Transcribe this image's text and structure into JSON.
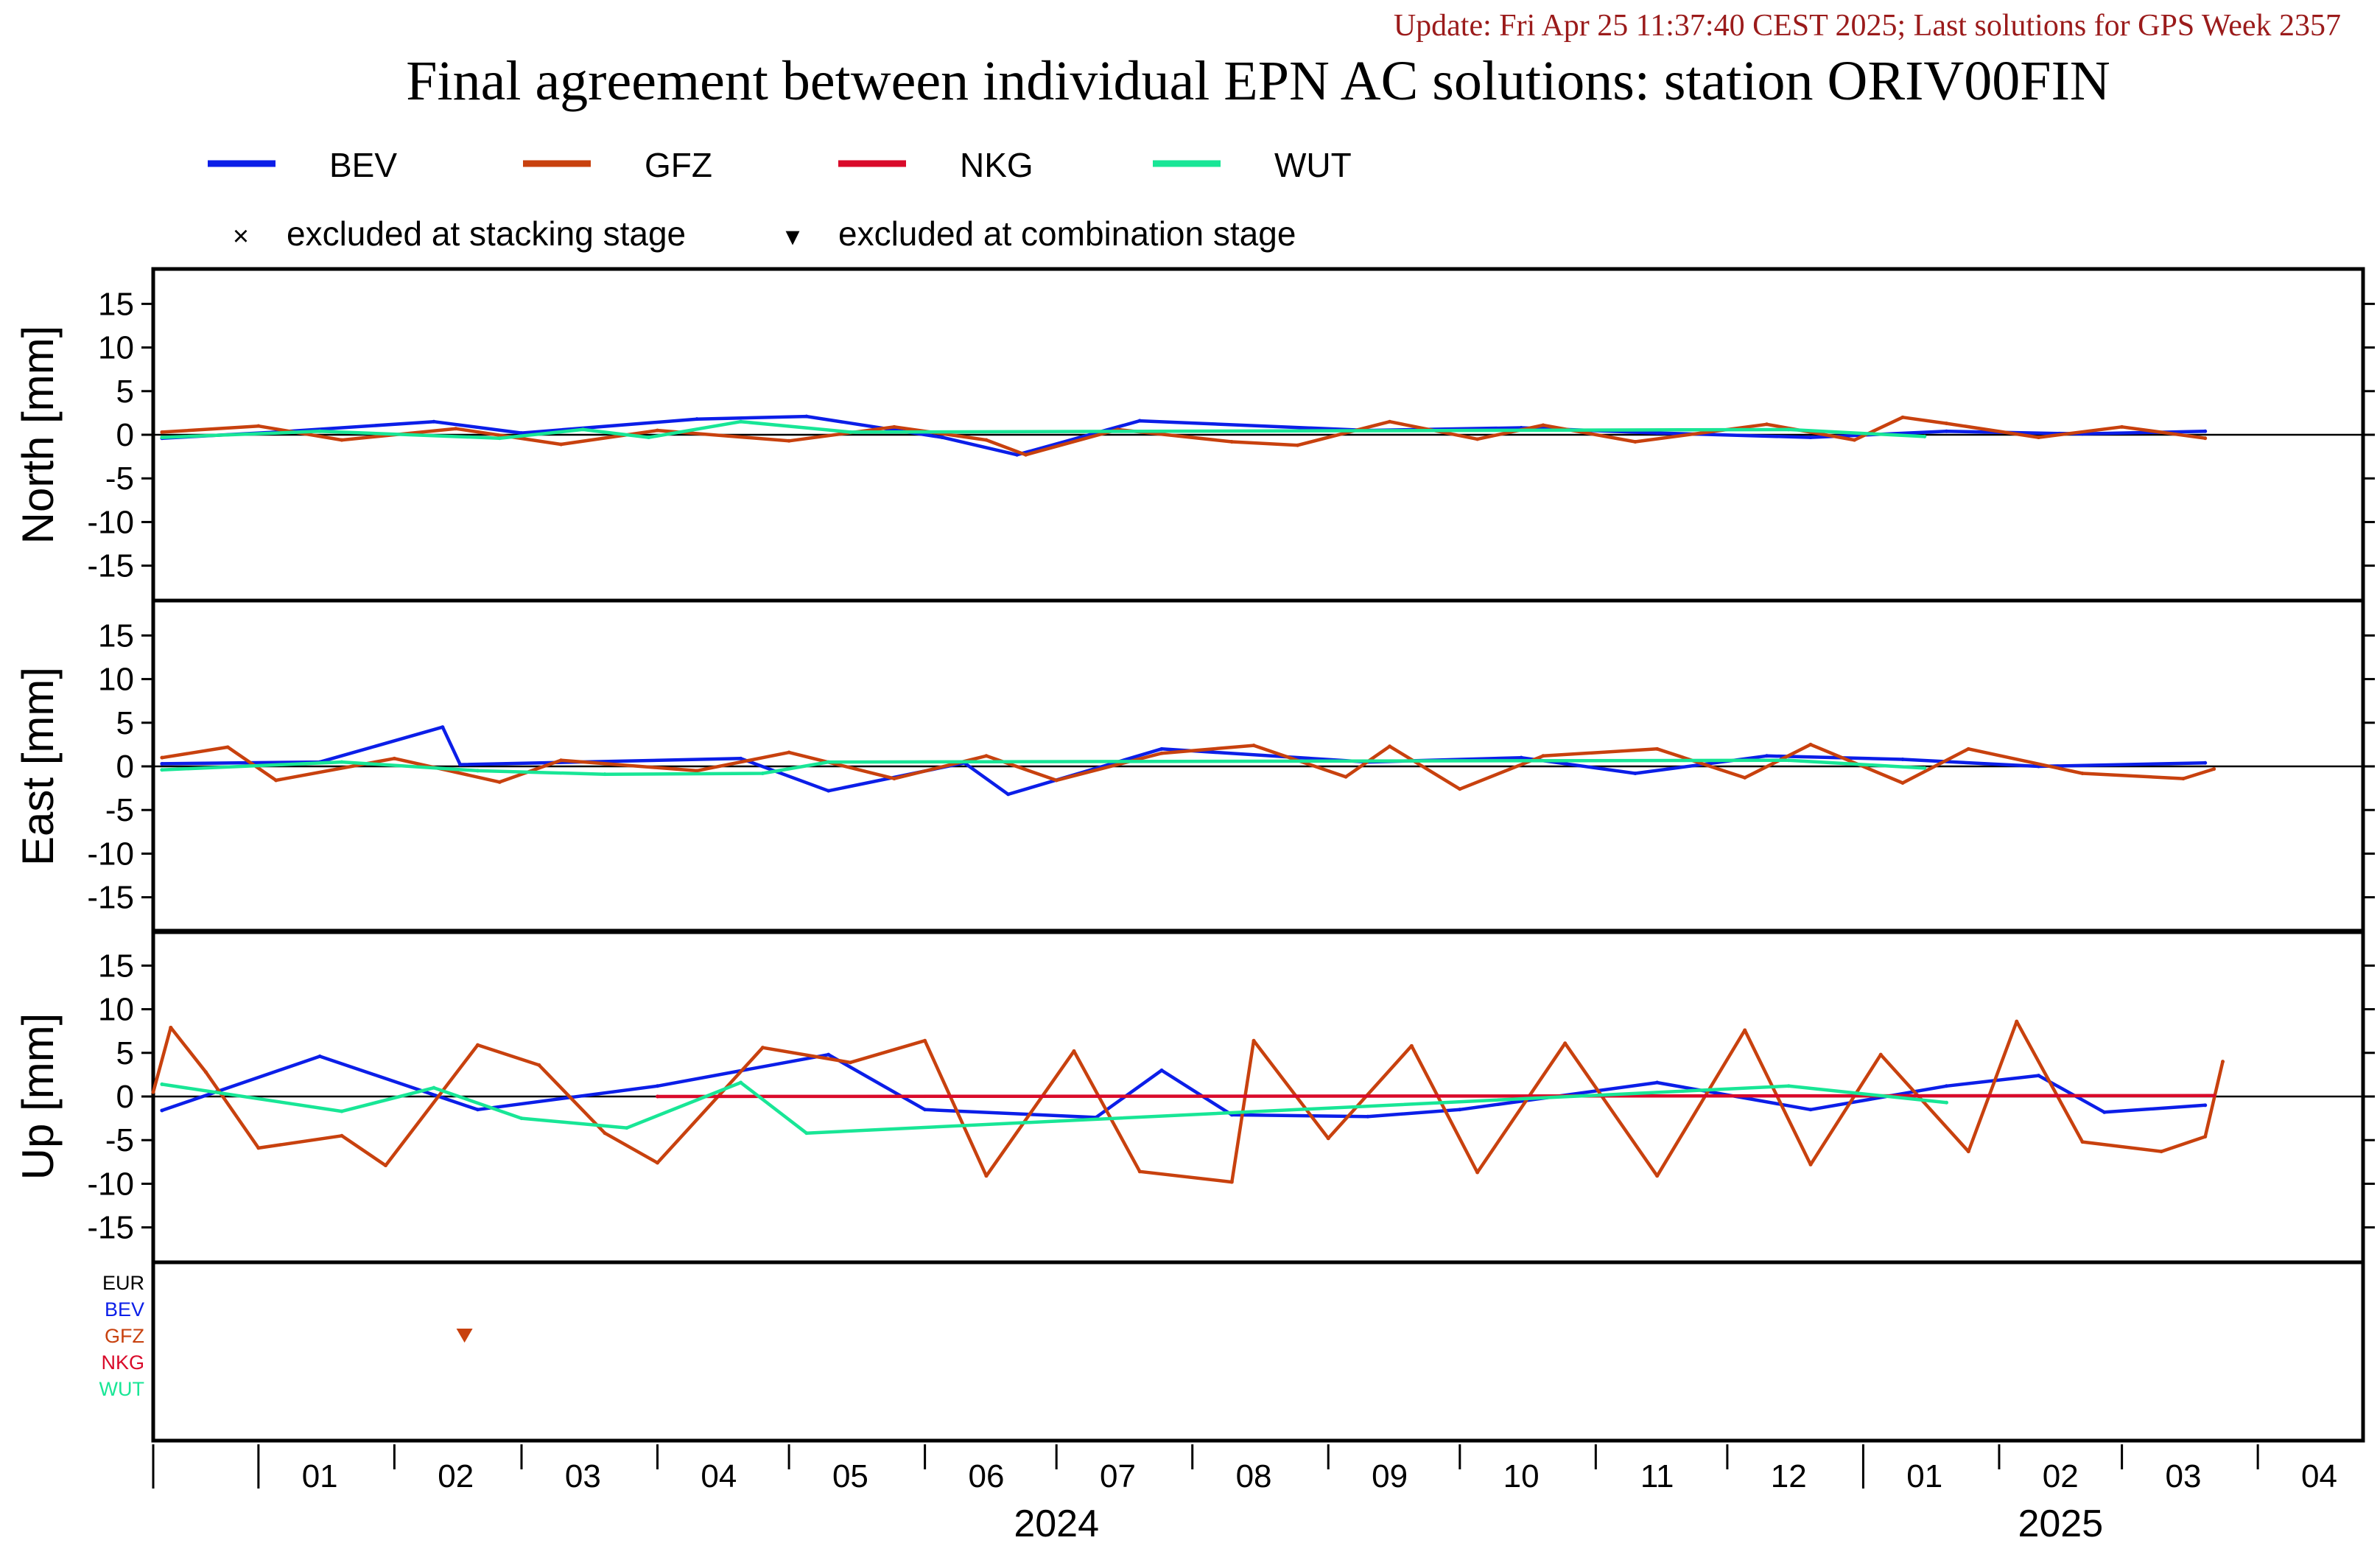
{
  "update_line": "Update: Fri Apr 25 11:37:40 CEST 2025; Last solutions for GPS Week 2357",
  "title": "Final agreement between individual EPN AC solutions: station ORIV00FIN",
  "colors": {
    "BEV": "#0b1ee8",
    "GFZ": "#c8410e",
    "NKG": "#d90a2a",
    "WUT": "#18e696",
    "EUR": "#000000",
    "update_text": "#9b1b1b"
  },
  "legend": {
    "series": [
      {
        "name": "BEV",
        "color": "#0b1ee8"
      },
      {
        "name": "GFZ",
        "color": "#c8410e"
      },
      {
        "name": "NKG",
        "color": "#d90a2a"
      },
      {
        "name": "WUT",
        "color": "#18e696"
      }
    ],
    "markers": [
      {
        "symbol": "×",
        "label": "excluded at stacking stage"
      },
      {
        "symbol": "▾",
        "label": "excluded at combination stage"
      }
    ]
  },
  "chart_data": {
    "type": "line",
    "x_axis": {
      "start": "2023-12-08",
      "end": "2025-04-25",
      "month_ticks": [
        {
          "label": "01",
          "date": "2024-01-15"
        },
        {
          "label": "02",
          "date": "2024-02-15"
        },
        {
          "label": "03",
          "date": "2024-03-15"
        },
        {
          "label": "04",
          "date": "2024-04-15"
        },
        {
          "label": "05",
          "date": "2024-05-15"
        },
        {
          "label": "06",
          "date": "2024-06-15"
        },
        {
          "label": "07",
          "date": "2024-07-15"
        },
        {
          "label": "08",
          "date": "2024-08-15"
        },
        {
          "label": "09",
          "date": "2024-09-15"
        },
        {
          "label": "10",
          "date": "2024-10-15"
        },
        {
          "label": "11",
          "date": "2024-11-15"
        },
        {
          "label": "12",
          "date": "2024-12-15"
        },
        {
          "label": "01",
          "date": "2025-01-15"
        },
        {
          "label": "02",
          "date": "2025-02-15"
        },
        {
          "label": "03",
          "date": "2025-03-15"
        },
        {
          "label": "04",
          "date": "2025-04-15"
        }
      ],
      "years": [
        {
          "label": "2024",
          "date": "2024-07-01"
        },
        {
          "label": "2025",
          "date": "2025-02-15"
        }
      ]
    },
    "panels": [
      {
        "ylabel": "North [mm]",
        "ylim": [
          -19,
          19
        ],
        "yticks": [
          15,
          10,
          5,
          0,
          -5,
          -10,
          -15
        ],
        "series": [
          {
            "name": "BEV",
            "color": "#0b1ee8",
            "points": [
              [
                "2023-12-10",
                -0.4
              ],
              [
                "2024-01-05",
                0.3
              ],
              [
                "2024-02-10",
                1.5
              ],
              [
                "2024-03-01",
                0.2
              ],
              [
                "2024-04-10",
                1.8
              ],
              [
                "2024-05-05",
                2.1
              ],
              [
                "2024-06-05",
                -0.3
              ],
              [
                "2024-06-22",
                -2.3
              ],
              [
                "2024-07-20",
                1.6
              ],
              [
                "2024-09-10",
                0.5
              ],
              [
                "2024-10-15",
                0.8
              ],
              [
                "2024-11-15",
                0.2
              ],
              [
                "2024-12-20",
                -0.3
              ],
              [
                "2025-01-20",
                0.4
              ],
              [
                "2025-02-20",
                0.1
              ],
              [
                "2025-03-20",
                0.4
              ]
            ]
          },
          {
            "name": "GFZ",
            "color": "#c8410e",
            "points": [
              [
                "2023-12-10",
                0.3
              ],
              [
                "2024-01-01",
                1.0
              ],
              [
                "2024-01-20",
                -0.6
              ],
              [
                "2024-02-15",
                0.7
              ],
              [
                "2024-03-10",
                -1.1
              ],
              [
                "2024-04-01",
                0.5
              ],
              [
                "2024-05-01",
                -0.7
              ],
              [
                "2024-05-25",
                0.9
              ],
              [
                "2024-06-15",
                -0.6
              ],
              [
                "2024-06-24",
                -2.3
              ],
              [
                "2024-07-15",
                0.6
              ],
              [
                "2024-08-10",
                -0.8
              ],
              [
                "2024-08-25",
                -1.2
              ],
              [
                "2024-09-15",
                1.5
              ],
              [
                "2024-10-05",
                -0.5
              ],
              [
                "2024-10-20",
                1.1
              ],
              [
                "2024-11-10",
                -0.8
              ],
              [
                "2024-12-10",
                1.2
              ],
              [
                "2024-12-30",
                -0.6
              ],
              [
                "2025-01-10",
                2.0
              ],
              [
                "2025-01-20",
                1.3
              ],
              [
                "2025-02-10",
                -0.3
              ],
              [
                "2025-03-01",
                0.9
              ],
              [
                "2025-03-20",
                -0.4
              ]
            ]
          },
          {
            "name": "WUT",
            "color": "#18e696",
            "points": [
              [
                "2023-12-10",
                -0.3
              ],
              [
                "2024-01-15",
                0.4
              ],
              [
                "2024-02-25",
                -0.4
              ],
              [
                "2024-03-15",
                0.6
              ],
              [
                "2024-03-30",
                -0.3
              ],
              [
                "2024-04-20",
                1.5
              ],
              [
                "2024-05-15",
                0.3
              ],
              [
                "2024-12-15",
                0.6
              ],
              [
                "2025-01-15",
                -0.2
              ]
            ]
          }
        ]
      },
      {
        "ylabel": "East [mm]",
        "ylim": [
          -19,
          19
        ],
        "yticks": [
          15,
          10,
          5,
          0,
          -5,
          -10,
          -15
        ],
        "series": [
          {
            "name": "BEV",
            "color": "#0b1ee8",
            "points": [
              [
                "2023-12-10",
                0.3
              ],
              [
                "2024-01-15",
                0.5
              ],
              [
                "2024-02-12",
                4.5
              ],
              [
                "2024-02-16",
                0.2
              ],
              [
                "2024-04-20",
                0.9
              ],
              [
                "2024-05-10",
                -2.8
              ],
              [
                "2024-06-10",
                0.4
              ],
              [
                "2024-06-20",
                -3.2
              ],
              [
                "2024-07-25",
                2.0
              ],
              [
                "2024-09-10",
                0.5
              ],
              [
                "2024-10-15",
                1.0
              ],
              [
                "2024-11-10",
                -0.8
              ],
              [
                "2024-12-10",
                1.2
              ],
              [
                "2025-01-10",
                0.8
              ],
              [
                "2025-02-10",
                0.0
              ],
              [
                "2025-03-20",
                0.4
              ]
            ]
          },
          {
            "name": "GFZ",
            "color": "#c8410e",
            "points": [
              [
                "2023-12-10",
                1.0
              ],
              [
                "2023-12-25",
                2.2
              ],
              [
                "2024-01-05",
                -1.6
              ],
              [
                "2024-02-01",
                0.9
              ],
              [
                "2024-02-25",
                -1.8
              ],
              [
                "2024-03-10",
                0.7
              ],
              [
                "2024-04-10",
                -0.5
              ],
              [
                "2024-05-01",
                1.6
              ],
              [
                "2024-05-25",
                -1.4
              ],
              [
                "2024-06-15",
                1.2
              ],
              [
                "2024-07-01",
                -1.6
              ],
              [
                "2024-07-25",
                1.5
              ],
              [
                "2024-08-15",
                2.4
              ],
              [
                "2024-09-05",
                -1.2
              ],
              [
                "2024-09-15",
                2.3
              ],
              [
                "2024-10-01",
                -2.6
              ],
              [
                "2024-10-20",
                1.2
              ],
              [
                "2024-11-15",
                2.0
              ],
              [
                "2024-12-05",
                -1.3
              ],
              [
                "2024-12-20",
                2.5
              ],
              [
                "2025-01-10",
                -1.9
              ],
              [
                "2025-01-25",
                2.0
              ],
              [
                "2025-02-20",
                -0.8
              ],
              [
                "2025-03-15",
                -1.4
              ],
              [
                "2025-03-22",
                -0.3
              ]
            ]
          },
          {
            "name": "WUT",
            "color": "#18e696",
            "points": [
              [
                "2023-12-10",
                -0.4
              ],
              [
                "2024-01-20",
                0.5
              ],
              [
                "2024-02-20",
                -0.5
              ],
              [
                "2024-03-20",
                -0.9
              ],
              [
                "2024-04-25",
                -0.8
              ],
              [
                "2024-05-10",
                0.5
              ],
              [
                "2024-12-15",
                0.7
              ],
              [
                "2025-01-15",
                -0.2
              ]
            ]
          }
        ]
      },
      {
        "ylabel": "Up [mm]",
        "ylim": [
          -19,
          19
        ],
        "yticks": [
          15,
          10,
          5,
          0,
          -5,
          -10,
          -15
        ],
        "series": [
          {
            "name": "BEV",
            "color": "#0b1ee8",
            "points": [
              [
                "2023-12-10",
                -1.6
              ],
              [
                "2024-01-15",
                4.6
              ],
              [
                "2024-02-20",
                -1.5
              ],
              [
                "2024-04-01",
                1.2
              ],
              [
                "2024-05-10",
                4.8
              ],
              [
                "2024-06-01",
                -1.5
              ],
              [
                "2024-07-10",
                -2.4
              ],
              [
                "2024-07-25",
                3.0
              ],
              [
                "2024-08-10",
                -2.1
              ],
              [
                "2024-09-10",
                -2.3
              ],
              [
                "2024-10-01",
                -1.5
              ],
              [
                "2024-11-15",
                1.6
              ],
              [
                "2024-12-20",
                -1.5
              ],
              [
                "2025-01-20",
                1.2
              ],
              [
                "2025-02-10",
                2.4
              ],
              [
                "2025-02-25",
                -1.8
              ],
              [
                "2025-03-20",
                -1.0
              ]
            ]
          },
          {
            "name": "GFZ",
            "color": "#c8410e",
            "points": [
              [
                "2023-12-08",
                0.5
              ],
              [
                "2023-12-12",
                7.9
              ],
              [
                "2023-12-20",
                2.8
              ],
              [
                "2024-01-01",
                -5.9
              ],
              [
                "2024-01-20",
                -4.5
              ],
              [
                "2024-01-30",
                -7.9
              ],
              [
                "2024-02-20",
                5.9
              ],
              [
                "2024-03-05",
                3.6
              ],
              [
                "2024-03-20",
                -4.2
              ],
              [
                "2024-04-01",
                -7.6
              ],
              [
                "2024-04-25",
                5.6
              ],
              [
                "2024-05-15",
                3.9
              ],
              [
                "2024-06-01",
                6.4
              ],
              [
                "2024-06-15",
                -9.1
              ],
              [
                "2024-07-05",
                5.2
              ],
              [
                "2024-07-20",
                -8.6
              ],
              [
                "2024-08-10",
                -9.8
              ],
              [
                "2024-08-15",
                6.4
              ],
              [
                "2024-09-01",
                -4.8
              ],
              [
                "2024-09-20",
                5.8
              ],
              [
                "2024-10-05",
                -8.7
              ],
              [
                "2024-10-25",
                6.1
              ],
              [
                "2024-11-15",
                -9.1
              ],
              [
                "2024-12-05",
                7.6
              ],
              [
                "2024-12-20",
                -7.8
              ],
              [
                "2025-01-05",
                4.8
              ],
              [
                "2025-01-25",
                -6.3
              ],
              [
                "2025-02-05",
                8.6
              ],
              [
                "2025-02-20",
                -5.2
              ],
              [
                "2025-03-10",
                -6.3
              ],
              [
                "2025-03-20",
                -4.6
              ],
              [
                "2025-03-24",
                4.0
              ]
            ]
          },
          {
            "name": "NKG",
            "color": "#d90a2a",
            "points": [
              [
                "2024-04-01",
                0.0
              ],
              [
                "2025-03-22",
                0.1
              ]
            ]
          },
          {
            "name": "WUT",
            "color": "#18e696",
            "points": [
              [
                "2023-12-10",
                1.4
              ],
              [
                "2024-01-20",
                -1.7
              ],
              [
                "2024-02-10",
                1.0
              ],
              [
                "2024-03-01",
                -2.5
              ],
              [
                "2024-03-25",
                -3.6
              ],
              [
                "2024-04-20",
                1.6
              ],
              [
                "2024-05-05",
                -4.2
              ],
              [
                "2024-12-15",
                1.2
              ],
              [
                "2025-01-20",
                -0.7
              ]
            ]
          }
        ]
      }
    ],
    "exclusions": {
      "rows": [
        "EUR",
        "BEV",
        "GFZ",
        "NKG",
        "WUT"
      ],
      "combination_stage": [
        {
          "ac": "GFZ",
          "date": "2024-02-17"
        }
      ],
      "stacking_stage": []
    }
  }
}
